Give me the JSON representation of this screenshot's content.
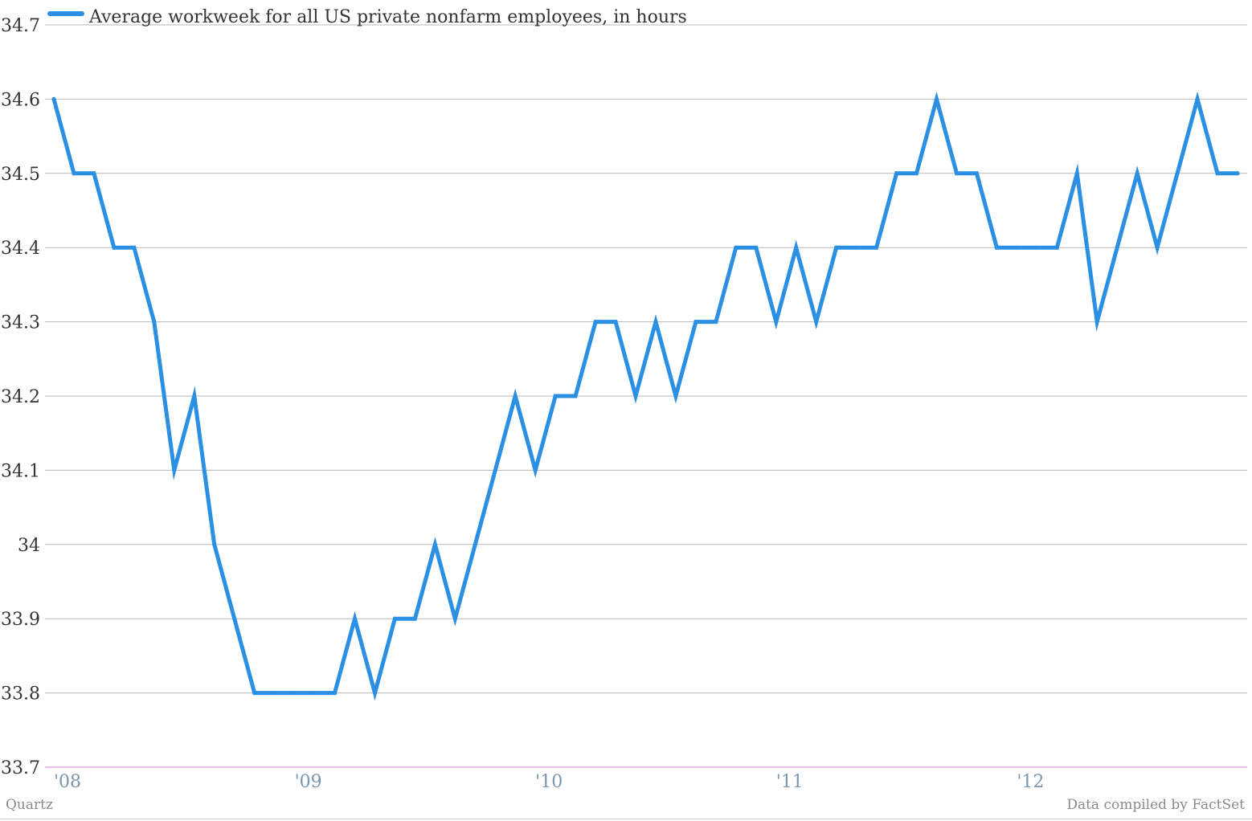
{
  "chart_data": {
    "type": "line",
    "title": "",
    "xlabel": "",
    "ylabel": "",
    "ylim": [
      33.7,
      34.7
    ],
    "yticks": [
      "34.7",
      "34.6",
      "34.5",
      "34.4",
      "34.3",
      "34.2",
      "34.1",
      "34",
      "33.9",
      "33.8",
      "33.7"
    ],
    "xticks": [
      "'08",
      "'09",
      "'10",
      "'11",
      "'12"
    ],
    "grid": true,
    "legend_position": "top-left",
    "series": [
      {
        "name": "Average workweek for all US private nonfarm employees, in hours",
        "color": "#2b8fe3",
        "x": [
          "2008-01",
          "2008-02",
          "2008-03",
          "2008-04",
          "2008-05",
          "2008-06",
          "2008-07",
          "2008-08",
          "2008-09",
          "2008-10",
          "2008-11",
          "2008-12",
          "2009-01",
          "2009-02",
          "2009-03",
          "2009-04",
          "2009-05",
          "2009-06",
          "2009-07",
          "2009-08",
          "2009-09",
          "2009-10",
          "2009-11",
          "2009-12",
          "2010-01",
          "2010-02",
          "2010-03",
          "2010-04",
          "2010-05",
          "2010-06",
          "2010-07",
          "2010-08",
          "2010-09",
          "2010-10",
          "2010-11",
          "2010-12",
          "2011-01",
          "2011-02",
          "2011-03",
          "2011-04",
          "2011-05",
          "2011-06",
          "2011-07",
          "2011-08",
          "2011-09",
          "2011-10",
          "2011-11",
          "2011-12",
          "2012-01",
          "2012-02",
          "2012-03",
          "2012-04",
          "2012-05",
          "2012-06",
          "2012-07",
          "2012-08",
          "2012-09",
          "2012-10",
          "2012-11",
          "2012-12"
        ],
        "values": [
          34.6,
          34.5,
          34.5,
          34.4,
          34.4,
          34.3,
          34.1,
          34.2,
          34.0,
          33.9,
          33.8,
          33.8,
          33.8,
          33.8,
          33.8,
          33.9,
          33.8,
          33.9,
          33.9,
          34.0,
          33.9,
          34.0,
          34.1,
          34.2,
          34.1,
          34.2,
          34.2,
          34.3,
          34.3,
          34.2,
          34.3,
          34.2,
          34.3,
          34.3,
          34.4,
          34.4,
          34.3,
          34.4,
          34.3,
          34.4,
          34.4,
          34.4,
          34.5,
          34.5,
          34.6,
          34.5,
          34.5,
          34.4,
          34.4,
          34.4,
          34.4,
          34.5,
          34.3,
          34.4,
          34.5,
          34.4,
          34.5,
          34.6,
          34.5,
          34.5
        ]
      }
    ]
  },
  "footer": {
    "credit": "Quartz",
    "source": "Data compiled by FactSet"
  }
}
